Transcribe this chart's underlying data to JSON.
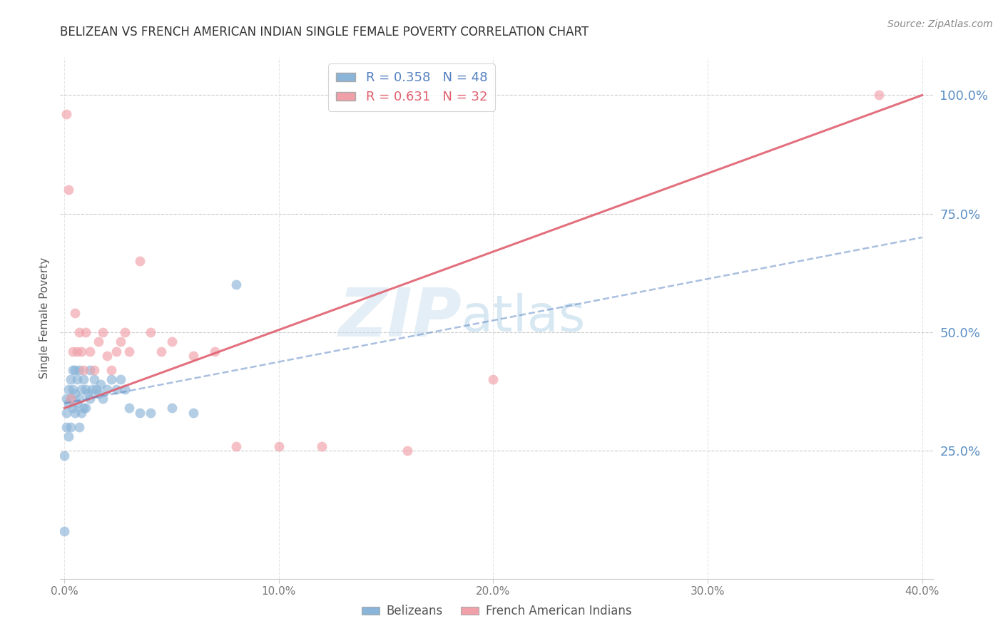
{
  "title": "BELIZEAN VS FRENCH AMERICAN INDIAN SINGLE FEMALE POVERTY CORRELATION CHART",
  "source": "Source: ZipAtlas.com",
  "ylabel": "Single Female Poverty",
  "watermark_zip": "ZIP",
  "watermark_atlas": "atlas",
  "right_ytick_labels": [
    "100.0%",
    "75.0%",
    "50.0%",
    "25.0%"
  ],
  "right_ytick_values": [
    1.0,
    0.75,
    0.5,
    0.25
  ],
  "xtick_labels": [
    "0.0%",
    "",
    "",
    "",
    "10.0%",
    "",
    "",
    "",
    "20.0%",
    "",
    "",
    "",
    "30.0%",
    "",
    "",
    "",
    "40.0%"
  ],
  "xtick_values": [
    0.0,
    0.025,
    0.05,
    0.075,
    0.1,
    0.125,
    0.15,
    0.175,
    0.2,
    0.225,
    0.25,
    0.275,
    0.3,
    0.325,
    0.35,
    0.375,
    0.4
  ],
  "xlim": [
    -0.002,
    0.405
  ],
  "ylim": [
    -0.02,
    1.08
  ],
  "belizean_color": "#8ab4d8",
  "french_color": "#f0a0a8",
  "belizean_line_color": "#5580c0",
  "french_line_color": "#e06070",
  "R_belizean": 0.358,
  "N_belizean": 48,
  "R_french": 0.631,
  "N_french": 32,
  "belizean_x": [
    0.0,
    0.0,
    0.001,
    0.001,
    0.001,
    0.002,
    0.002,
    0.002,
    0.003,
    0.003,
    0.003,
    0.004,
    0.004,
    0.004,
    0.005,
    0.005,
    0.005,
    0.006,
    0.006,
    0.007,
    0.007,
    0.007,
    0.008,
    0.008,
    0.009,
    0.009,
    0.01,
    0.01,
    0.011,
    0.012,
    0.012,
    0.013,
    0.014,
    0.015,
    0.016,
    0.017,
    0.018,
    0.02,
    0.022,
    0.024,
    0.026,
    0.028,
    0.03,
    0.035,
    0.04,
    0.05,
    0.06,
    0.08
  ],
  "belizean_y": [
    0.08,
    0.24,
    0.3,
    0.33,
    0.36,
    0.28,
    0.35,
    0.38,
    0.3,
    0.36,
    0.4,
    0.34,
    0.38,
    0.42,
    0.33,
    0.37,
    0.42,
    0.35,
    0.4,
    0.3,
    0.36,
    0.42,
    0.33,
    0.38,
    0.34,
    0.4,
    0.34,
    0.38,
    0.37,
    0.36,
    0.42,
    0.38,
    0.4,
    0.38,
    0.37,
    0.39,
    0.36,
    0.38,
    0.4,
    0.38,
    0.4,
    0.38,
    0.34,
    0.33,
    0.33,
    0.34,
    0.33,
    0.6
  ],
  "french_x": [
    0.001,
    0.002,
    0.003,
    0.004,
    0.005,
    0.006,
    0.007,
    0.008,
    0.009,
    0.01,
    0.012,
    0.014,
    0.016,
    0.018,
    0.02,
    0.022,
    0.024,
    0.026,
    0.028,
    0.03,
    0.035,
    0.04,
    0.045,
    0.05,
    0.06,
    0.07,
    0.08,
    0.1,
    0.12,
    0.16,
    0.2,
    0.38
  ],
  "french_y": [
    0.96,
    0.8,
    0.36,
    0.46,
    0.54,
    0.46,
    0.5,
    0.46,
    0.42,
    0.5,
    0.46,
    0.42,
    0.48,
    0.5,
    0.45,
    0.42,
    0.46,
    0.48,
    0.5,
    0.46,
    0.65,
    0.5,
    0.46,
    0.48,
    0.45,
    0.46,
    0.26,
    0.26,
    0.26,
    0.25,
    0.4,
    1.0
  ],
  "french_line_x0": 0.0,
  "french_line_y0": 0.34,
  "french_line_x1": 0.4,
  "french_line_y1": 1.0,
  "belizean_line_x0": 0.0,
  "belizean_line_y0": 0.35,
  "belizean_line_x1": 0.4,
  "belizean_line_y1": 0.7,
  "background_color": "#ffffff",
  "grid_color": "#cccccc",
  "title_color": "#333333",
  "source_color": "#888888",
  "right_label_color": "#5b8fc4"
}
